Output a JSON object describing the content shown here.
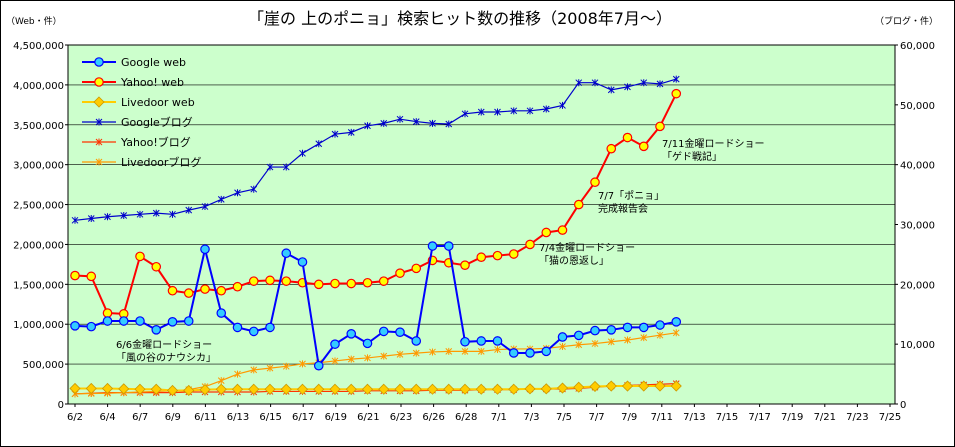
{
  "chart_data": {
    "type": "line",
    "title": "「崖の 上のポニョ」検索ヒット数の推移（2008年7月～）",
    "left_unit": "（Web・件）",
    "right_unit": "（ブログ・件）",
    "plot_background": "#ccffcc",
    "grid": true,
    "legend_position": "top-left",
    "x_ticks": [
      "6/2",
      "6/4",
      "6/7",
      "6/9",
      "6/11",
      "6/13",
      "6/15",
      "6/17",
      "6/19",
      "6/21",
      "6/23",
      "6/26",
      "6/28",
      "7/1",
      "7/3",
      "7/5",
      "7/7",
      "7/9",
      "7/11",
      "7/13",
      "7/15",
      "7/17",
      "7/19",
      "7/21",
      "7/23",
      "7/25"
    ],
    "y_left": {
      "min": 0,
      "max": 4500000,
      "step": 500000,
      "ticks": [
        "0",
        "500,000",
        "1,000,000",
        "1,500,000",
        "2,000,000",
        "2,500,000",
        "3,000,000",
        "3,500,000",
        "4,000,000",
        "4,500,000"
      ]
    },
    "y_right": {
      "min": 0,
      "max": 60000,
      "step": 10000,
      "ticks": [
        "0",
        "10,000",
        "20,000",
        "30,000",
        "40,000",
        "50,000",
        "60,000"
      ]
    },
    "series": [
      {
        "name": "Google web",
        "axis": "left",
        "color": "#0000ff",
        "fill": "#33ccff",
        "marker": "circle",
        "values": [
          980000,
          970000,
          1040000,
          1040000,
          1040000,
          930000,
          1030000,
          1040000,
          1940000,
          1140000,
          960000,
          910000,
          960000,
          1890000,
          1780000,
          480000,
          750000,
          880000,
          760000,
          910000,
          900000,
          790000,
          1980000,
          1980000,
          780000,
          790000,
          790000,
          640000,
          640000,
          660000,
          840000,
          860000,
          920000,
          930000,
          960000,
          960000,
          990000,
          1030000
        ]
      },
      {
        "name": "Yahoo! web",
        "axis": "left",
        "color": "#ff0000",
        "fill": "#ffff00",
        "marker": "circle",
        "values": [
          1610000,
          1600000,
          1140000,
          1130000,
          1850000,
          1720000,
          1420000,
          1390000,
          1440000,
          1420000,
          1470000,
          1540000,
          1550000,
          1540000,
          1520000,
          1500000,
          1510000,
          1510000,
          1520000,
          1540000,
          1640000,
          1700000,
          1800000,
          1770000,
          1740000,
          1840000,
          1860000,
          1880000,
          2000000,
          2150000,
          2180000,
          2500000,
          2780000,
          3200000,
          3340000,
          3230000,
          3480000,
          3890000
        ]
      },
      {
        "name": "Livedoor web",
        "axis": "left",
        "color": "#ffcc00",
        "fill": "#ffcc00",
        "marker": "diamond",
        "values": [
          195000,
          195000,
          195000,
          190000,
          185000,
          185000,
          170000,
          170000,
          180000,
          185000,
          185000,
          185000,
          185000,
          185000,
          185000,
          185000,
          185000,
          185000,
          185000,
          185000,
          185000,
          185000,
          185000,
          185000,
          185000,
          185000,
          185000,
          185000,
          190000,
          190000,
          200000,
          210000,
          220000,
          225000,
          225000,
          225000,
          225000,
          225000
        ]
      },
      {
        "name": "Googleブログ",
        "axis": "right",
        "color": "#0000cc",
        "marker": "star",
        "values": [
          30700,
          31000,
          31300,
          31500,
          31700,
          31900,
          31700,
          32400,
          33000,
          34200,
          35300,
          35900,
          39600,
          39600,
          41900,
          43500,
          45100,
          45400,
          46500,
          46900,
          47600,
          47200,
          46900,
          46800,
          48500,
          48800,
          48800,
          49000,
          49000,
          49300,
          49900,
          53700,
          53700,
          52500,
          53000,
          53700,
          53500,
          54300
        ]
      },
      {
        "name": "Yahoo!ブログ",
        "axis": "right",
        "color": "#ff3300",
        "marker": "star",
        "values": [
          1700,
          1800,
          1900,
          1900,
          1900,
          1900,
          1900,
          2000,
          2000,
          2000,
          2000,
          2000,
          2100,
          2100,
          2100,
          2100,
          2100,
          2100,
          2200,
          2200,
          2200,
          2200,
          2300,
          2300,
          2300,
          2400,
          2400,
          2400,
          2500,
          2500,
          2500,
          2600,
          2800,
          3000,
          3100,
          3200,
          3300,
          3400
        ]
      },
      {
        "name": "Livedoorブログ",
        "axis": "right",
        "color": "#ff9900",
        "marker": "star",
        "values": [
          1700,
          1750,
          1800,
          1900,
          2000,
          2100,
          2200,
          2400,
          2900,
          3900,
          5000,
          5700,
          6000,
          6300,
          6700,
          6900,
          7200,
          7500,
          7700,
          8000,
          8300,
          8500,
          8700,
          8800,
          8800,
          8800,
          9100,
          9200,
          9200,
          9300,
          9600,
          9900,
          10100,
          10400,
          10700,
          11100,
          11500,
          11900
        ]
      }
    ],
    "annotations": [
      {
        "lines": [
          "6/6金曜ロードショー",
          "「風の谷のナウシカ」"
        ],
        "near": "6/7"
      },
      {
        "lines": [
          "7/4金曜ロードショー",
          "「猫の恩返し」"
        ],
        "near": "7/4"
      },
      {
        "lines": [
          "7/7「ポニョ」",
          "完成報告会"
        ],
        "near": "7/7"
      },
      {
        "lines": [
          "7/11金曜ロードショー",
          "「ゲド戦記」"
        ],
        "near": "7/11"
      }
    ]
  }
}
